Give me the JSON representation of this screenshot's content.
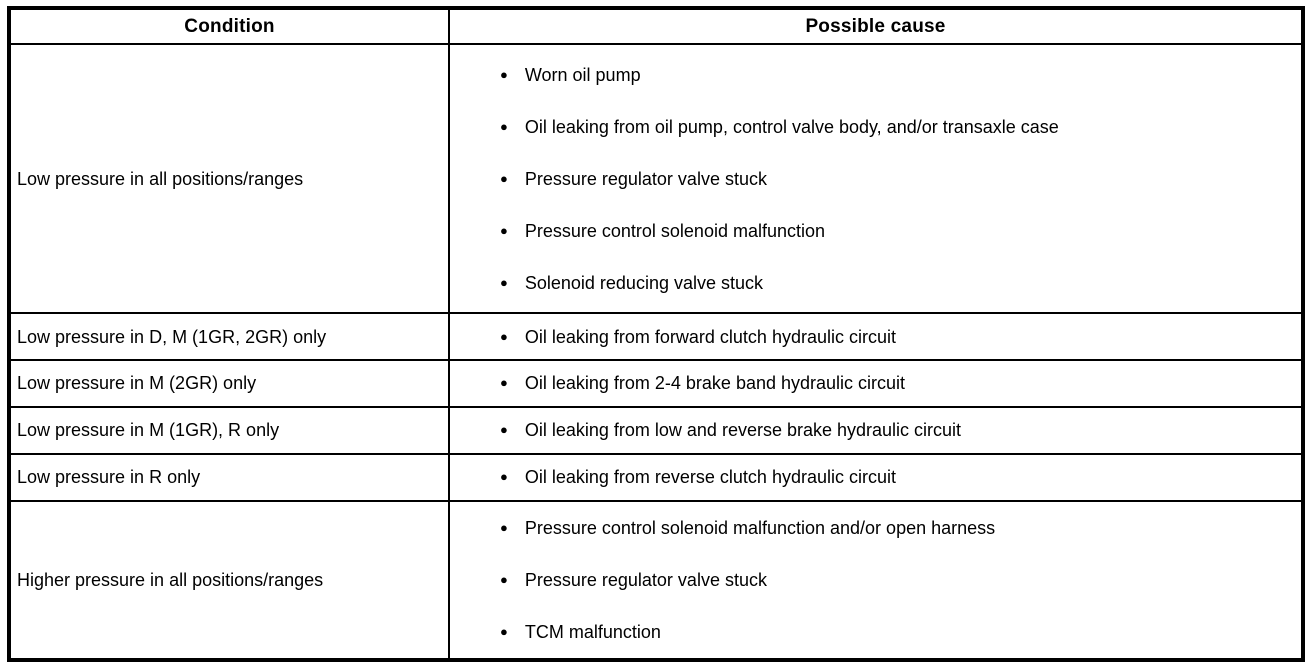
{
  "table": {
    "headers": {
      "condition": "Condition",
      "possible_cause": "Possible cause"
    },
    "bullet_icon": "●",
    "rows": [
      {
        "condition": "Low pressure in all positions/ranges",
        "causes": [
          "Worn oil pump",
          "Oil leaking from oil pump, control valve body, and/or transaxle case",
          "Pressure regulator valve stuck",
          "Pressure control solenoid malfunction",
          "Solenoid reducing valve stuck"
        ]
      },
      {
        "condition": "Low pressure in D, M (1GR, 2GR) only",
        "causes": [
          "Oil leaking from forward clutch hydraulic circuit"
        ]
      },
      {
        "condition": "Low pressure in M (2GR) only",
        "causes": [
          "Oil leaking from 2-4 brake band hydraulic circuit"
        ]
      },
      {
        "condition": "Low pressure in M (1GR), R only",
        "causes": [
          "Oil leaking from low and reverse brake hydraulic circuit"
        ]
      },
      {
        "condition": "Low pressure in R only",
        "causes": [
          "Oil leaking from reverse clutch hydraulic circuit"
        ]
      },
      {
        "condition": "Higher pressure in all positions/ranges",
        "causes": [
          "Pressure control solenoid malfunction and/or open harness",
          "Pressure regulator valve stuck",
          "TCM malfunction"
        ]
      }
    ],
    "colors": {
      "border": "#000000",
      "text": "#000000",
      "background": "#ffffff"
    }
  }
}
